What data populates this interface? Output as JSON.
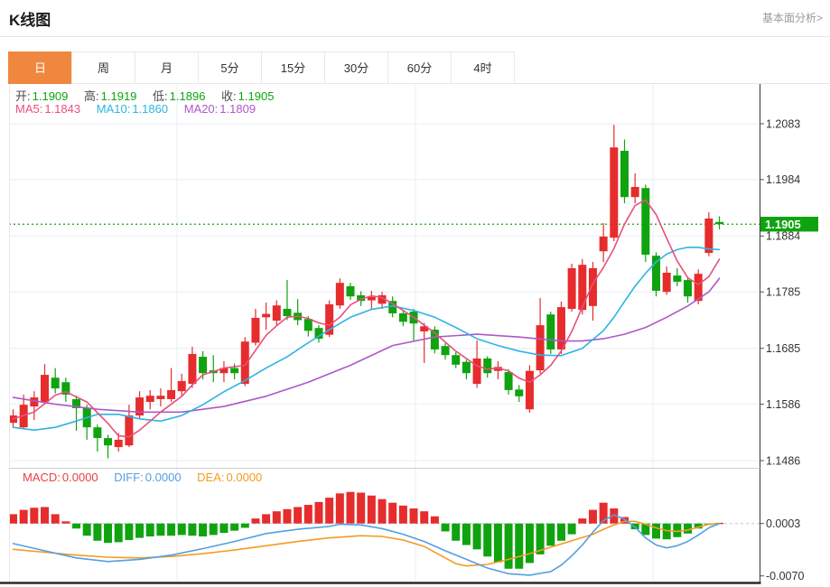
{
  "header": {
    "title": "K线图",
    "link": "基本面分析>"
  },
  "tabs": {
    "items": [
      "日",
      "周",
      "月",
      "5分",
      "15分",
      "30分",
      "60分",
      "4时"
    ],
    "active_index": 0
  },
  "readout": {
    "open_label": "开:",
    "open": "1.1909",
    "high_label": "高:",
    "high": "1.1919",
    "low_label": "低:",
    "low": "1.1896",
    "close_label": "收:",
    "close": "1.1905",
    "ma5_label": "MA5:",
    "ma5": "1.1843",
    "ma10_label": "MA10:",
    "ma10": "1.1860",
    "ma20_label": "MA20:",
    "ma20": "1.1809"
  },
  "macd_readout": {
    "macd_label": "MACD:",
    "macd": "0.0000",
    "diff_label": "DIFF:",
    "diff": "0.0000",
    "dea_label": "DEA:",
    "dea": "0.0000"
  },
  "colors": {
    "up_red": "#e62c2c",
    "down_green": "#0fa30f",
    "tab_orange": "#f0873f",
    "ma5_pink": "#e8507c",
    "ma10_cyan": "#2db4e4",
    "ma20_purple": "#ae58c8",
    "diff_blue": "#539fe3",
    "dea_orange": "#f59b22",
    "grid": "#e9eef4",
    "axis": "#4a4a4a",
    "axis_text": "#333333",
    "current_price_bg": "#0fa30f",
    "zero_dash": "#a8cfe8"
  },
  "chart_data": {
    "type": "candlestick+macd",
    "title": "K线图 日线 (daily candlestick with MACD)",
    "price_axis": {
      "ticks": [
        "1.2083",
        "1.1984",
        "1.1884",
        "1.1785",
        "1.1685",
        "1.1586",
        "1.1486"
      ],
      "current_price": "1.1905"
    },
    "macd_axis": {
      "ticks": [
        "0.0003",
        "-0.0070"
      ]
    },
    "candles_ohlc_note": "arrays are [open, close, low, high]; close>=open renders red (up), close<open renders green (down)",
    "candles": [
      [
        1.1553,
        1.1566,
        1.1545,
        1.1577
      ],
      [
        1.1545,
        1.1585,
        1.1542,
        1.1603
      ],
      [
        1.1582,
        1.1598,
        1.1558,
        1.1609
      ],
      [
        1.159,
        1.1638,
        1.1585,
        1.1657
      ],
      [
        1.1633,
        1.1614,
        1.1605,
        1.165
      ],
      [
        1.1625,
        1.1603,
        1.159,
        1.1633
      ],
      [
        1.1595,
        1.1579,
        1.1539,
        1.1601
      ],
      [
        1.1579,
        1.1545,
        1.1523,
        1.1585
      ],
      [
        1.1545,
        1.1526,
        1.1502,
        1.155
      ],
      [
        1.1526,
        1.1513,
        1.149,
        1.1532
      ],
      [
        1.151,
        1.1523,
        1.1502,
        1.1535
      ],
      [
        1.1513,
        1.1566,
        1.151,
        1.1585
      ],
      [
        1.1566,
        1.1598,
        1.156,
        1.1609
      ],
      [
        1.159,
        1.1601,
        1.1577,
        1.1611
      ],
      [
        1.1595,
        1.1601,
        1.1582,
        1.1614
      ],
      [
        1.1595,
        1.1611,
        1.159,
        1.165
      ],
      [
        1.1609,
        1.1627,
        1.16,
        1.164
      ],
      [
        1.1622,
        1.1675,
        1.1615,
        1.1688
      ],
      [
        1.167,
        1.1641,
        1.163,
        1.168
      ],
      [
        1.1646,
        1.1641,
        1.1625,
        1.1673
      ],
      [
        1.1641,
        1.165,
        1.1625,
        1.1662
      ],
      [
        1.165,
        1.1641,
        1.163,
        1.1658
      ],
      [
        1.1622,
        1.1697,
        1.1618,
        1.1705
      ],
      [
        1.1695,
        1.1739,
        1.169,
        1.1755
      ],
      [
        1.174,
        1.1746,
        1.1718,
        1.1766
      ],
      [
        1.1734,
        1.1761,
        1.1726,
        1.177
      ],
      [
        1.1755,
        1.1742,
        1.1735,
        1.1806
      ],
      [
        1.1748,
        1.1735,
        1.1726,
        1.1772
      ],
      [
        1.1737,
        1.1716,
        1.1706,
        1.1742
      ],
      [
        1.1721,
        1.1702,
        1.1695,
        1.1726
      ],
      [
        1.1709,
        1.1763,
        1.1705,
        1.177
      ],
      [
        1.1761,
        1.1801,
        1.1755,
        1.1809
      ],
      [
        1.1795,
        1.1777,
        1.1771,
        1.1801
      ],
      [
        1.1779,
        1.1769,
        1.176,
        1.1786
      ],
      [
        1.177,
        1.1776,
        1.1755,
        1.1787
      ],
      [
        1.1764,
        1.1779,
        1.1755,
        1.1785
      ],
      [
        1.1769,
        1.1747,
        1.174,
        1.1777
      ],
      [
        1.1747,
        1.1732,
        1.1724,
        1.1753
      ],
      [
        1.175,
        1.1729,
        1.1699,
        1.1755
      ],
      [
        1.1715,
        1.1724,
        1.1659,
        1.173
      ],
      [
        1.1718,
        1.1683,
        1.1676,
        1.1724
      ],
      [
        1.1689,
        1.1673,
        1.1665,
        1.1694
      ],
      [
        1.1673,
        1.1656,
        1.165,
        1.1678
      ],
      [
        1.1661,
        1.1641,
        1.163,
        1.1665
      ],
      [
        1.1622,
        1.1667,
        1.1615,
        1.1699
      ],
      [
        1.1667,
        1.1641,
        1.1633,
        1.1671
      ],
      [
        1.1645,
        1.1652,
        1.163,
        1.1662
      ],
      [
        1.1643,
        1.1611,
        1.1603,
        1.1648
      ],
      [
        1.1612,
        1.16,
        1.159,
        1.162
      ],
      [
        1.1577,
        1.1645,
        1.1571,
        1.1655
      ],
      [
        1.1646,
        1.1726,
        1.164,
        1.1774
      ],
      [
        1.1745,
        1.1683,
        1.1675,
        1.175
      ],
      [
        1.1683,
        1.1758,
        1.1675,
        1.1768
      ],
      [
        1.1755,
        1.1827,
        1.175,
        1.1835
      ],
      [
        1.1753,
        1.1833,
        1.1745,
        1.1843
      ],
      [
        1.176,
        1.1827,
        1.1734,
        1.1838
      ],
      [
        1.1857,
        1.1883,
        1.1838,
        1.1907
      ],
      [
        1.1881,
        1.2041,
        1.1875,
        1.2081
      ],
      [
        1.2035,
        1.1953,
        1.1942,
        1.2055
      ],
      [
        1.1953,
        1.1971,
        1.1942,
        1.1995
      ],
      [
        1.1969,
        1.1851,
        1.1838,
        1.1975
      ],
      [
        1.1849,
        1.1787,
        1.1777,
        1.1855
      ],
      [
        1.1785,
        1.1819,
        1.178,
        1.183
      ],
      [
        1.1814,
        1.1803,
        1.1795,
        1.1827
      ],
      [
        1.1806,
        1.1777,
        1.1766,
        1.1812
      ],
      [
        1.1769,
        1.1817,
        1.1763,
        1.1825
      ],
      [
        1.1854,
        1.1915,
        1.1848,
        1.1926
      ],
      [
        1.1909,
        1.1905,
        1.1896,
        1.1919
      ]
    ],
    "ma5_pts": [
      [
        0,
        1.156
      ],
      [
        2,
        1.1572
      ],
      [
        4,
        1.1602
      ],
      [
        5,
        1.1608
      ],
      [
        7,
        1.159
      ],
      [
        9,
        1.1552
      ],
      [
        10,
        1.153
      ],
      [
        11,
        1.1528
      ],
      [
        12,
        1.154
      ],
      [
        14,
        1.1572
      ],
      [
        16,
        1.16
      ],
      [
        17,
        1.162
      ],
      [
        18,
        1.1638
      ],
      [
        20,
        1.165
      ],
      [
        22,
        1.1655
      ],
      [
        24,
        1.1708
      ],
      [
        25,
        1.1725
      ],
      [
        26,
        1.174
      ],
      [
        27,
        1.1742
      ],
      [
        28,
        1.1738
      ],
      [
        29,
        1.173
      ],
      [
        30,
        1.1726
      ],
      [
        31,
        1.174
      ],
      [
        32,
        1.1762
      ],
      [
        33,
        1.1772
      ],
      [
        34,
        1.1778
      ],
      [
        35,
        1.1775
      ],
      [
        36,
        1.1764
      ],
      [
        38,
        1.174
      ],
      [
        40,
        1.1712
      ],
      [
        42,
        1.168
      ],
      [
        44,
        1.1654
      ],
      [
        45,
        1.1648
      ],
      [
        46,
        1.165
      ],
      [
        47,
        1.1645
      ],
      [
        48,
        1.1632
      ],
      [
        49,
        1.1625
      ],
      [
        50,
        1.1638
      ],
      [
        51,
        1.1655
      ],
      [
        52,
        1.168
      ],
      [
        53,
        1.1715
      ],
      [
        54,
        1.1758
      ],
      [
        55,
        1.18
      ],
      [
        56,
        1.1828
      ],
      [
        57,
        1.1862
      ],
      [
        58,
        1.1905
      ],
      [
        59,
        1.1938
      ],
      [
        60,
        1.1948
      ],
      [
        61,
        1.1922
      ],
      [
        62,
        1.188
      ],
      [
        63,
        1.184
      ],
      [
        64,
        1.181
      ],
      [
        65,
        1.1798
      ],
      [
        66,
        1.1812
      ],
      [
        67,
        1.1843
      ]
    ],
    "ma10_pts": [
      [
        0,
        1.1545
      ],
      [
        2,
        1.154
      ],
      [
        4,
        1.1545
      ],
      [
        6,
        1.1556
      ],
      [
        8,
        1.1568
      ],
      [
        10,
        1.1568
      ],
      [
        12,
        1.156
      ],
      [
        14,
        1.1556
      ],
      [
        16,
        1.1566
      ],
      [
        18,
        1.1585
      ],
      [
        20,
        1.1608
      ],
      [
        22,
        1.1628
      ],
      [
        24,
        1.165
      ],
      [
        26,
        1.167
      ],
      [
        28,
        1.1695
      ],
      [
        30,
        1.1718
      ],
      [
        32,
        1.174
      ],
      [
        34,
        1.1754
      ],
      [
        36,
        1.176
      ],
      [
        38,
        1.1752
      ],
      [
        40,
        1.174
      ],
      [
        42,
        1.1722
      ],
      [
        44,
        1.1702
      ],
      [
        46,
        1.169
      ],
      [
        48,
        1.168
      ],
      [
        50,
        1.1673
      ],
      [
        52,
        1.1672
      ],
      [
        54,
        1.1685
      ],
      [
        56,
        1.1716
      ],
      [
        57,
        1.174
      ],
      [
        58,
        1.1768
      ],
      [
        59,
        1.1795
      ],
      [
        60,
        1.1818
      ],
      [
        61,
        1.1838
      ],
      [
        62,
        1.1852
      ],
      [
        63,
        1.186
      ],
      [
        64,
        1.1864
      ],
      [
        65,
        1.1864
      ],
      [
        66,
        1.1861
      ],
      [
        67,
        1.186
      ]
    ],
    "ma20_pts": [
      [
        0,
        1.1598
      ],
      [
        4,
        1.1586
      ],
      [
        8,
        1.1577
      ],
      [
        12,
        1.1572
      ],
      [
        16,
        1.1572
      ],
      [
        20,
        1.1582
      ],
      [
        24,
        1.16
      ],
      [
        28,
        1.1625
      ],
      [
        32,
        1.1655
      ],
      [
        36,
        1.169
      ],
      [
        40,
        1.1705
      ],
      [
        44,
        1.171
      ],
      [
        48,
        1.1705
      ],
      [
        52,
        1.1698
      ],
      [
        54,
        1.1698
      ],
      [
        56,
        1.1702
      ],
      [
        58,
        1.171
      ],
      [
        60,
        1.1722
      ],
      [
        62,
        1.174
      ],
      [
        64,
        1.176
      ],
      [
        66,
        1.1785
      ],
      [
        67,
        1.1809
      ]
    ],
    "macd_hist": [
      0.0013,
      0.0019,
      0.0022,
      0.0023,
      0.0013,
      0.0003,
      -0.0007,
      -0.0017,
      -0.0024,
      -0.0027,
      -0.0026,
      -0.0023,
      -0.002,
      -0.0018,
      -0.0017,
      -0.0017,
      -0.0016,
      -0.0017,
      -0.0018,
      -0.0016,
      -0.0013,
      -0.001,
      -0.0006,
      0.0007,
      0.0013,
      0.0017,
      0.002,
      0.0023,
      0.0026,
      0.003,
      0.0036,
      0.0042,
      0.0044,
      0.0043,
      0.0039,
      0.0034,
      0.0029,
      0.0025,
      0.0021,
      0.0017,
      0.001,
      -0.0011,
      -0.0024,
      -0.003,
      -0.0036,
      -0.0046,
      -0.0054,
      -0.0063,
      -0.0063,
      -0.0055,
      -0.0043,
      -0.0031,
      -0.0024,
      -0.0015,
      0.0007,
      0.0019,
      0.0029,
      0.0021,
      0.0009,
      -0.0008,
      -0.0016,
      -0.0021,
      -0.0022,
      -0.0019,
      -0.0014,
      -0.0007,
      -0.0002,
      0.0001
    ],
    "diff_pts": [
      [
        0,
        -0.0028
      ],
      [
        3,
        -0.0038
      ],
      [
        6,
        -0.0048
      ],
      [
        9,
        -0.0053
      ],
      [
        12,
        -0.005
      ],
      [
        15,
        -0.0044
      ],
      [
        18,
        -0.0035
      ],
      [
        21,
        -0.0025
      ],
      [
        24,
        -0.0014
      ],
      [
        27,
        -0.0008
      ],
      [
        30,
        -0.0004
      ],
      [
        31,
        -0.0001
      ],
      [
        33,
        -0.0002
      ],
      [
        35,
        -0.0007
      ],
      [
        37,
        -0.0015
      ],
      [
        39,
        -0.0025
      ],
      [
        41,
        -0.0038
      ],
      [
        43,
        -0.005
      ],
      [
        45,
        -0.0062
      ],
      [
        47,
        -0.007
      ],
      [
        49,
        -0.0072
      ],
      [
        51,
        -0.0067
      ],
      [
        52,
        -0.0058
      ],
      [
        53,
        -0.0045
      ],
      [
        54,
        -0.003
      ],
      [
        55,
        -0.0012
      ],
      [
        56,
        0.0004
      ],
      [
        57,
        0.0012
      ],
      [
        58,
        0.0006
      ],
      [
        59,
        -0.0005
      ],
      [
        60,
        -0.002
      ],
      [
        61,
        -0.003
      ],
      [
        62,
        -0.0034
      ],
      [
        63,
        -0.0031
      ],
      [
        64,
        -0.0025
      ],
      [
        65,
        -0.0016
      ],
      [
        66,
        -0.0006
      ],
      [
        67,
        0.0
      ]
    ],
    "dea_pts": [
      [
        0,
        -0.0036
      ],
      [
        3,
        -0.004
      ],
      [
        6,
        -0.0044
      ],
      [
        9,
        -0.0047
      ],
      [
        12,
        -0.0048
      ],
      [
        15,
        -0.0046
      ],
      [
        18,
        -0.0042
      ],
      [
        21,
        -0.0037
      ],
      [
        24,
        -0.0031
      ],
      [
        27,
        -0.0025
      ],
      [
        30,
        -0.002
      ],
      [
        33,
        -0.0017
      ],
      [
        35,
        -0.0018
      ],
      [
        37,
        -0.0023
      ],
      [
        39,
        -0.0032
      ],
      [
        41,
        -0.0048
      ],
      [
        42,
        -0.0056
      ],
      [
        43,
        -0.0059
      ],
      [
        45,
        -0.0057
      ],
      [
        47,
        -0.005
      ],
      [
        49,
        -0.0042
      ],
      [
        51,
        -0.0033
      ],
      [
        53,
        -0.0024
      ],
      [
        55,
        -0.0015
      ],
      [
        56,
        -0.0008
      ],
      [
        57,
        -0.0002
      ],
      [
        58,
        0.0003
      ],
      [
        59,
        0.0003
      ],
      [
        60,
        -0.0001
      ],
      [
        61,
        -0.0006
      ],
      [
        62,
        -0.001
      ],
      [
        63,
        -0.0011
      ],
      [
        64,
        -0.0009
      ],
      [
        65,
        -0.0005
      ],
      [
        66,
        -0.0001
      ],
      [
        67,
        0.0
      ]
    ]
  }
}
